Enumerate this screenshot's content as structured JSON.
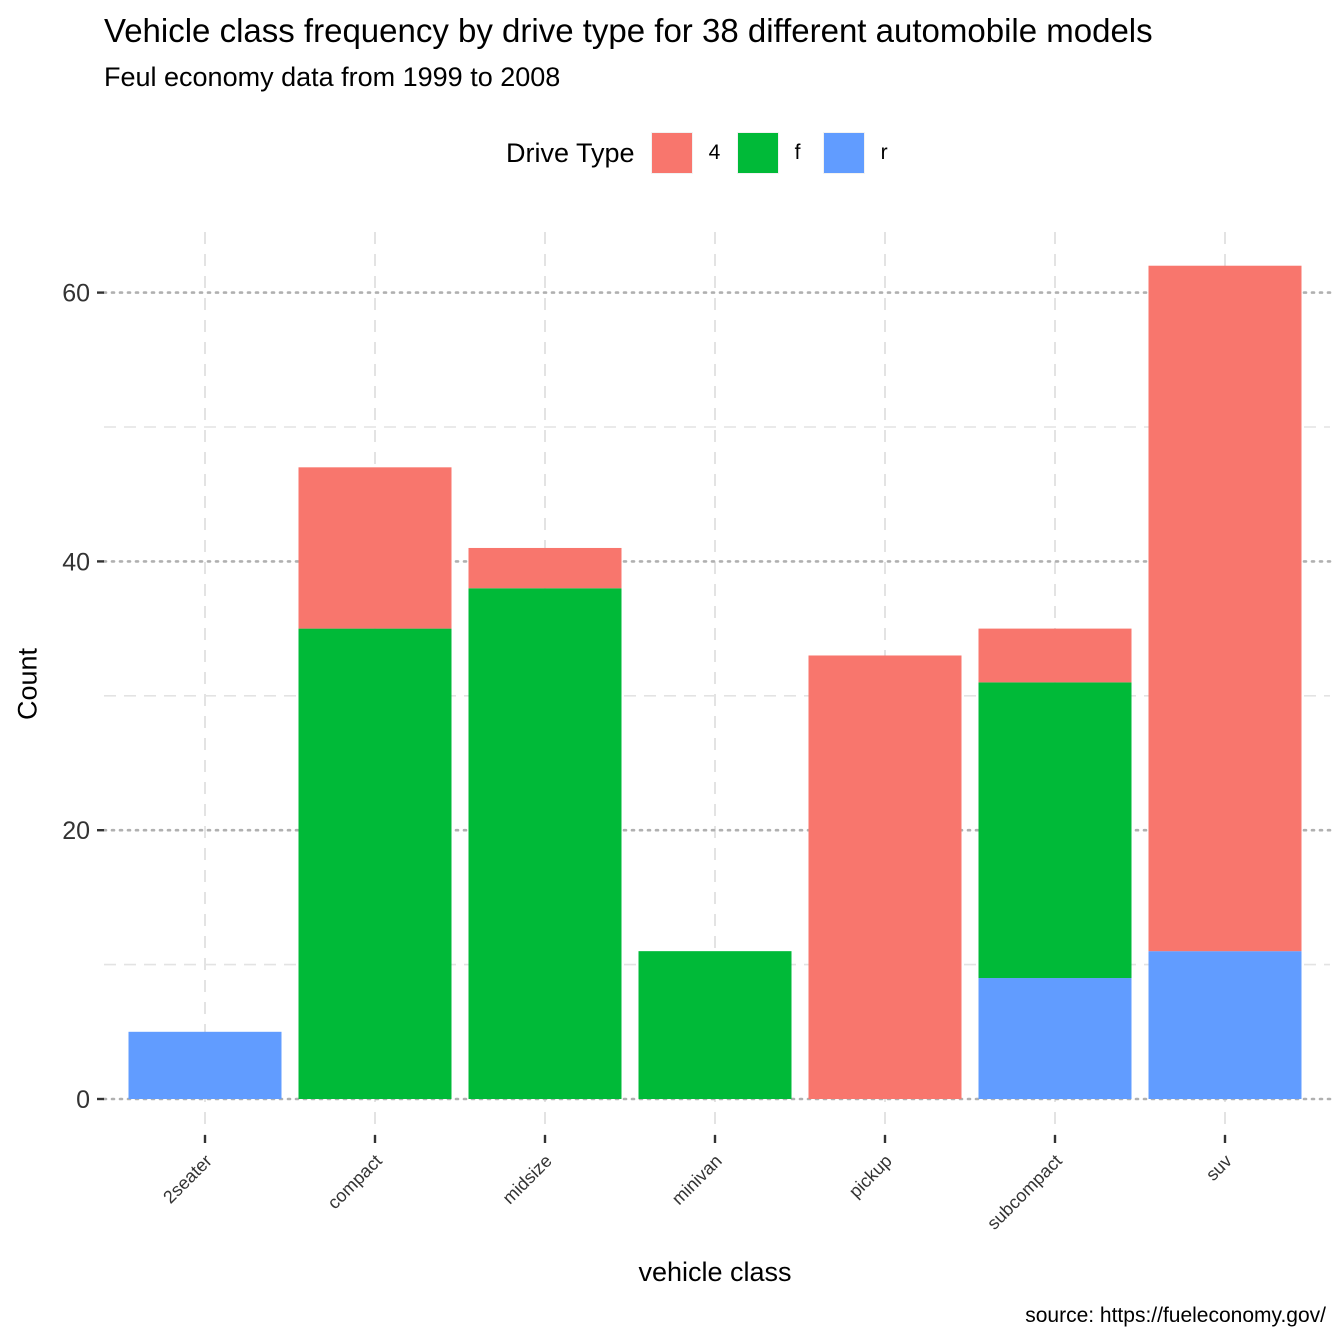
{
  "chart_data": {
    "type": "bar",
    "stacked": true,
    "title": "Vehicle class frequency by drive type for 38 different automobile models",
    "subtitle": "Feul economy data from 1999 to 2008",
    "caption": "source: https://fueleconomy.gov/",
    "xlabel": "vehicle class",
    "ylabel": "Count",
    "ylim": [
      0,
      62
    ],
    "yticks": [
      0,
      20,
      40,
      60
    ],
    "grid": true,
    "legend": {
      "title": "Drive Type",
      "position": "top"
    },
    "categories": [
      "2seater",
      "compact",
      "midsize",
      "minivan",
      "pickup",
      "subcompact",
      "suv"
    ],
    "series": [
      {
        "name": "4",
        "color": "#F8766D",
        "values": [
          0,
          12,
          3,
          0,
          33,
          4,
          51
        ]
      },
      {
        "name": "f",
        "color": "#00BA38",
        "values": [
          0,
          35,
          38,
          11,
          0,
          22,
          0
        ]
      },
      {
        "name": "r",
        "color": "#619CFF",
        "values": [
          5,
          0,
          0,
          0,
          0,
          9,
          11
        ]
      }
    ]
  }
}
